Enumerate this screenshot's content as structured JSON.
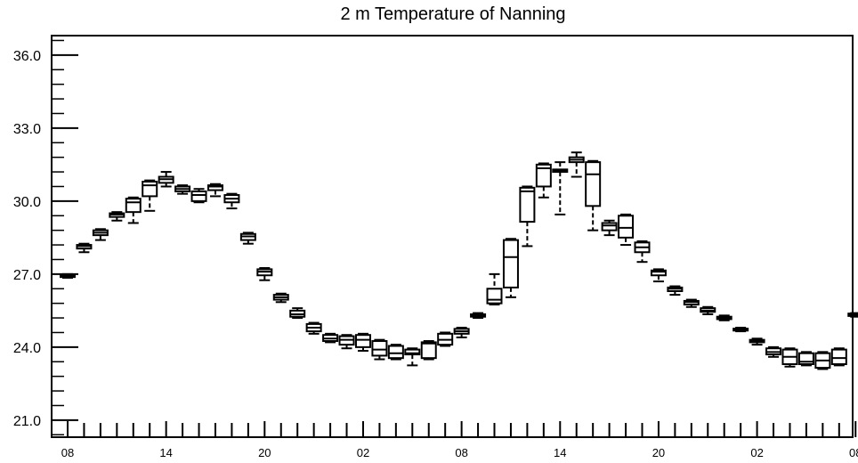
{
  "chart_data": {
    "type": "box",
    "title": "2 m Temperature of Nanning",
    "xlabel": "",
    "ylabel": "",
    "ylim": [
      20.3,
      36.8
    ],
    "ytick_values": [
      21.0,
      24.0,
      27.0,
      30.0,
      33.0,
      36.0
    ],
    "ytick_labels": [
      "21.0",
      "24.0",
      "27.0",
      "30.0",
      "33.0",
      "36.0"
    ],
    "xlim": [
      0,
      48.8
    ],
    "xtick_labels": [
      "08",
      "14",
      "20",
      "02",
      "08",
      "14",
      "20",
      "02",
      "08"
    ],
    "xtick_hours": [
      0,
      6,
      12,
      18,
      24,
      30,
      36,
      42,
      48
    ],
    "grid": false,
    "legend": "none",
    "box_color": "#000000",
    "series": [
      {
        "values": [
          {
            "hour": 0,
            "min": 26.85,
            "q1": 26.88,
            "median": 26.92,
            "q3": 26.96,
            "max": 27.0
          },
          {
            "hour": 1,
            "min": 27.9,
            "q1": 28.05,
            "median": 28.15,
            "q3": 28.2,
            "max": 28.25
          },
          {
            "hour": 2,
            "min": 28.4,
            "q1": 28.6,
            "median": 28.7,
            "q3": 28.8,
            "max": 28.85
          },
          {
            "hour": 3,
            "min": 29.2,
            "q1": 29.35,
            "median": 29.45,
            "q3": 29.5,
            "max": 29.55
          },
          {
            "hour": 4,
            "min": 29.1,
            "q1": 29.55,
            "median": 29.95,
            "q3": 30.1,
            "max": 30.15
          },
          {
            "hour": 5,
            "min": 29.6,
            "q1": 30.2,
            "median": 30.65,
            "q3": 30.8,
            "max": 30.85
          },
          {
            "hour": 6,
            "min": 30.6,
            "q1": 30.75,
            "median": 30.9,
            "q3": 31.0,
            "max": 31.2
          },
          {
            "hour": 7,
            "min": 30.3,
            "q1": 30.4,
            "median": 30.5,
            "q3": 30.6,
            "max": 30.65
          },
          {
            "hour": 8,
            "min": 29.95,
            "q1": 30.0,
            "median": 30.25,
            "q3": 30.4,
            "max": 30.5
          },
          {
            "hour": 9,
            "min": 30.2,
            "q1": 30.45,
            "median": 30.6,
            "q3": 30.65,
            "max": 30.7
          },
          {
            "hour": 10,
            "min": 29.7,
            "q1": 29.95,
            "median": 30.1,
            "q3": 30.25,
            "max": 30.3
          },
          {
            "hour": 11,
            "min": 28.25,
            "q1": 28.4,
            "median": 28.55,
            "q3": 28.65,
            "max": 28.7
          },
          {
            "hour": 12,
            "min": 26.75,
            "q1": 26.95,
            "median": 27.1,
            "q3": 27.2,
            "max": 27.25
          },
          {
            "hour": 13,
            "min": 25.85,
            "q1": 25.95,
            "median": 26.05,
            "q3": 26.15,
            "max": 26.2
          },
          {
            "hour": 14,
            "min": 25.2,
            "q1": 25.25,
            "median": 25.35,
            "q3": 25.5,
            "max": 25.6
          },
          {
            "hour": 15,
            "min": 24.55,
            "q1": 24.65,
            "median": 24.8,
            "q3": 24.95,
            "max": 25.0
          },
          {
            "hour": 16,
            "min": 24.2,
            "q1": 24.25,
            "median": 24.35,
            "q3": 24.5,
            "max": 24.55
          },
          {
            "hour": 17,
            "min": 23.95,
            "q1": 24.1,
            "median": 24.3,
            "q3": 24.45,
            "max": 24.5
          },
          {
            "hour": 18,
            "min": 23.85,
            "q1": 24.0,
            "median": 24.3,
            "q3": 24.5,
            "max": 24.55
          },
          {
            "hour": 19,
            "min": 23.5,
            "q1": 23.65,
            "median": 23.9,
            "q3": 24.25,
            "max": 24.3
          },
          {
            "hour": 20,
            "min": 23.5,
            "q1": 23.55,
            "median": 23.75,
            "q3": 24.05,
            "max": 24.1
          },
          {
            "hour": 21,
            "min": 23.25,
            "q1": 23.7,
            "median": 23.75,
            "q3": 23.9,
            "max": 23.95
          },
          {
            "hour": 22,
            "min": 23.5,
            "q1": 23.55,
            "median": 24.15,
            "q3": 24.2,
            "max": 24.25
          },
          {
            "hour": 23,
            "min": 24.05,
            "q1": 24.1,
            "median": 24.3,
            "q3": 24.55,
            "max": 24.6
          },
          {
            "hour": 24,
            "min": 24.4,
            "q1": 24.55,
            "median": 24.65,
            "q3": 24.75,
            "max": 24.8
          },
          {
            "hour": 25,
            "min": 25.2,
            "q1": 25.25,
            "median": 25.3,
            "q3": 25.35,
            "max": 25.4
          },
          {
            "hour": 26,
            "min": 25.75,
            "q1": 25.8,
            "median": 25.95,
            "q3": 26.4,
            "max": 27.0
          },
          {
            "hour": 27,
            "min": 26.05,
            "q1": 26.45,
            "median": 27.7,
            "q3": 28.4,
            "max": 28.45
          },
          {
            "hour": 28,
            "min": 28.15,
            "q1": 29.15,
            "median": 30.4,
            "q3": 30.55,
            "max": 30.6
          },
          {
            "hour": 29,
            "min": 30.15,
            "q1": 30.6,
            "median": 31.35,
            "q3": 31.5,
            "max": 31.55
          },
          {
            "hour": 30,
            "min": 29.45,
            "q1": 31.2,
            "median": 31.25,
            "q3": 31.3,
            "max": 31.6
          },
          {
            "hour": 31,
            "min": 31.0,
            "q1": 31.6,
            "median": 31.7,
            "q3": 31.8,
            "max": 32.0
          },
          {
            "hour": 32,
            "min": 28.8,
            "q1": 29.8,
            "median": 31.1,
            "q3": 31.6,
            "max": 31.65
          },
          {
            "hour": 33,
            "min": 28.6,
            "q1": 28.8,
            "median": 29.0,
            "q3": 29.1,
            "max": 29.2
          },
          {
            "hour": 34,
            "min": 28.2,
            "q1": 28.5,
            "median": 28.9,
            "q3": 29.4,
            "max": 29.45
          },
          {
            "hour": 35,
            "min": 27.5,
            "q1": 27.9,
            "median": 28.1,
            "q3": 28.3,
            "max": 28.35
          },
          {
            "hour": 36,
            "min": 26.7,
            "q1": 26.95,
            "median": 27.1,
            "q3": 27.15,
            "max": 27.2
          },
          {
            "hour": 37,
            "min": 26.15,
            "q1": 26.3,
            "median": 26.4,
            "q3": 26.45,
            "max": 26.5
          },
          {
            "hour": 38,
            "min": 25.65,
            "q1": 25.75,
            "median": 25.85,
            "q3": 25.9,
            "max": 25.95
          },
          {
            "hour": 39,
            "min": 25.35,
            "q1": 25.45,
            "median": 25.5,
            "q3": 25.6,
            "max": 25.65
          },
          {
            "hour": 40,
            "min": 25.1,
            "q1": 25.15,
            "median": 25.2,
            "q3": 25.25,
            "max": 25.3
          },
          {
            "hour": 41,
            "min": 24.65,
            "q1": 24.68,
            "median": 24.72,
            "q3": 24.76,
            "max": 24.8
          },
          {
            "hour": 42,
            "min": 24.1,
            "q1": 24.2,
            "median": 24.25,
            "q3": 24.3,
            "max": 24.35
          },
          {
            "hour": 43,
            "min": 23.6,
            "q1": 23.7,
            "median": 23.8,
            "q3": 23.95,
            "max": 24.0
          },
          {
            "hour": 44,
            "min": 23.2,
            "q1": 23.3,
            "median": 23.6,
            "q3": 23.9,
            "max": 23.95
          },
          {
            "hour": 45,
            "min": 23.25,
            "q1": 23.3,
            "median": 23.4,
            "q3": 23.75,
            "max": 23.8
          },
          {
            "hour": 46,
            "min": 23.1,
            "q1": 23.15,
            "median": 23.45,
            "q3": 23.75,
            "max": 23.8
          },
          {
            "hour": 47,
            "min": 23.25,
            "q1": 23.3,
            "median": 23.55,
            "q3": 23.9,
            "max": 23.95
          },
          {
            "hour": 48,
            "min": 25.25,
            "q1": 25.28,
            "median": 25.32,
            "q3": 25.38,
            "max": 25.4
          }
        ]
      }
    ]
  }
}
